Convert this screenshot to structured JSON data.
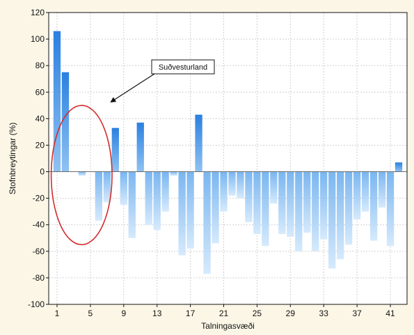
{
  "chart_data": {
    "type": "bar",
    "xlabel": "Talningasvæði",
    "ylabel": "Stofnbreytingar (%)",
    "ylim": [
      -100,
      120
    ],
    "yticks": [
      -100,
      -80,
      -60,
      -40,
      -20,
      0,
      20,
      40,
      60,
      80,
      100,
      120
    ],
    "xlim": [
      0,
      43
    ],
    "xticks": [
      1,
      5,
      9,
      13,
      17,
      21,
      25,
      29,
      33,
      37,
      41
    ],
    "grid": true,
    "x": [
      1,
      2,
      3,
      4,
      5,
      6,
      7,
      8,
      9,
      10,
      11,
      12,
      13,
      14,
      15,
      16,
      17,
      18,
      19,
      20,
      21,
      22,
      23,
      24,
      25,
      26,
      27,
      28,
      29,
      30,
      31,
      32,
      33,
      34,
      35,
      36,
      37,
      38,
      39,
      40,
      41,
      42
    ],
    "values": [
      106,
      75,
      0,
      -3,
      0,
      -37,
      -23,
      33,
      -25,
      -50,
      37,
      -40,
      -44,
      -30,
      -3,
      -63,
      -58,
      43,
      -77,
      -54,
      -30,
      -18,
      -20,
      -38,
      -47,
      -56,
      -24,
      -47,
      -49,
      -60,
      -46,
      -60,
      -51,
      -73,
      -66,
      -55,
      -36,
      -30,
      -52,
      -27,
      -56,
      7
    ],
    "annotations": [
      {
        "text": "Suðvesturland",
        "type": "callout-box-with-arrow"
      },
      {
        "type": "ellipse",
        "color": "#d42a2a",
        "x_range": [
          0.3,
          7.6
        ],
        "y_range": [
          -55,
          50
        ]
      }
    ],
    "colors": {
      "bar_positive_top": "#2a80e0",
      "bar_positive_bottom": "#90c2f2",
      "bar_negative_top": "#7ab6f0",
      "bar_negative_bottom": "#d6eafc",
      "plot_background": "#ffffff",
      "page_background": "#fbf6e6",
      "grid": "#d0d0d0"
    }
  }
}
